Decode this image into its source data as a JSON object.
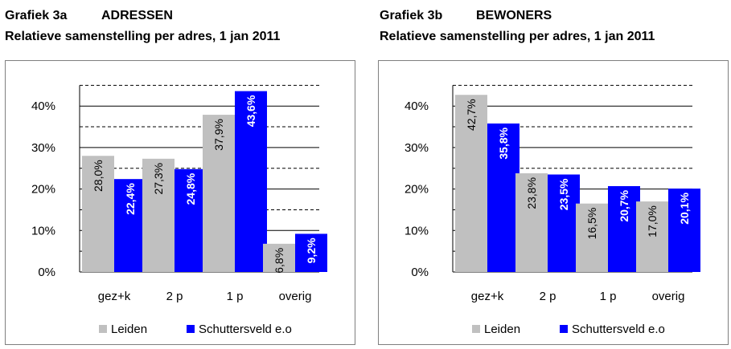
{
  "charts": [
    {
      "heading_number": "Grafiek 3a",
      "heading_name": "ADRESSEN",
      "subtitle": "Relatieve samenstelling per adres, 1 jan 2011"
    },
    {
      "heading_number": "Grafiek 3b",
      "heading_name": "BEWONERS",
      "subtitle": "Relatieve samenstelling per adres, 1 jan 2011"
    }
  ],
  "colors": {
    "leiden": "#c0c0c0",
    "schuttersveld": "#0000ff"
  },
  "chart_data": [
    {
      "type": "bar",
      "title": "Grafiek 3a ADRESSEN",
      "subtitle": "Relatieve samenstelling per adres, 1 jan 2011",
      "categories": [
        "gez+k",
        "2 p",
        "1 p",
        "overig"
      ],
      "series": [
        {
          "name": "Leiden",
          "values": [
            28.0,
            27.3,
            37.9,
            6.8
          ],
          "labels": [
            "28,0%",
            "27,3%",
            "37,9%",
            "6,8%"
          ]
        },
        {
          "name": "Schuttersveld e.o",
          "values": [
            22.4,
            24.8,
            43.6,
            9.2
          ],
          "labels": [
            "22,4%",
            "24,8%",
            "43,6%",
            "9,2%"
          ]
        }
      ],
      "yticks": [
        "0%",
        "10%",
        "20%",
        "30%",
        "40%"
      ],
      "ylim": [
        0,
        45
      ],
      "grid": "solid at 10% steps, dashed at 5% midpoints",
      "legend": "bottom"
    },
    {
      "type": "bar",
      "title": "Grafiek 3b BEWONERS",
      "subtitle": "Relatieve samenstelling per adres, 1 jan 2011",
      "categories": [
        "gez+k",
        "2 p",
        "1 p",
        "overig"
      ],
      "series": [
        {
          "name": "Leiden",
          "values": [
            42.7,
            23.8,
            16.5,
            17.0
          ],
          "labels": [
            "42,7%",
            "23,8%",
            "16,5%",
            "17,0%"
          ]
        },
        {
          "name": "Schuttersveld e.o",
          "values": [
            35.8,
            23.5,
            20.7,
            20.1
          ],
          "labels": [
            "35,8%",
            "23,5%",
            "20,7%",
            "20,1%"
          ]
        }
      ],
      "yticks": [
        "0%",
        "10%",
        "20%",
        "30%",
        "40%"
      ],
      "ylim": [
        0,
        45
      ],
      "grid": "solid at 10% steps, dashed at 5% midpoints",
      "legend": "bottom"
    }
  ]
}
